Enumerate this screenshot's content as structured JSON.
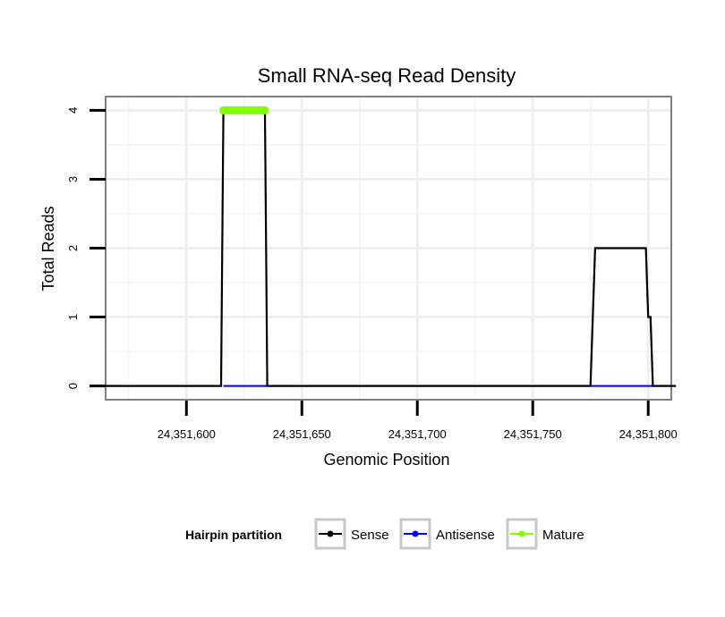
{
  "chart_data": {
    "type": "line",
    "title": "Small RNA-seq Read Density",
    "xlabel": "Genomic Position",
    "ylabel": "Total Reads",
    "xlim": [
      24351565,
      24351810
    ],
    "ylim": [
      -0.2,
      4.2
    ],
    "x_ticks": [
      24351600,
      24351650,
      24351700,
      24351750,
      24351800
    ],
    "x_tick_labels": [
      "24,351,600",
      "24,351,650",
      "24,351,700",
      "24,351,750",
      "24,351,800"
    ],
    "y_ticks": [
      0,
      1,
      2,
      3,
      4
    ],
    "y_tick_labels": [
      "0",
      "1",
      "2",
      "3",
      "4"
    ],
    "x_minor_ticks": [
      24351575,
      24351625,
      24351675,
      24351725,
      24351775
    ],
    "y_minor_ticks": [
      0.5,
      1.5,
      2.5,
      3.5
    ],
    "grid": true,
    "legend_position": "bottom",
    "legend": {
      "title": "Hairpin partition",
      "entries": [
        {
          "label": "Sense",
          "color": "#000000"
        },
        {
          "label": "Antisense",
          "color": "#0000ff"
        },
        {
          "label": "Mature",
          "color": "#7fff00"
        }
      ]
    },
    "series": [
      {
        "name": "Sense",
        "color": "#000000",
        "x": [
          24351565,
          24351615,
          24351616,
          24351634,
          24351635,
          24351775,
          24351777,
          24351799,
          24351800,
          24351801,
          24351802,
          24351812
        ],
        "y": [
          0,
          0,
          4,
          4,
          0,
          0,
          2,
          2,
          1,
          1,
          0,
          0
        ]
      },
      {
        "name": "Antisense",
        "color": "#0000ff",
        "x": [
          24351616,
          24351635,
          24351775,
          24351802
        ],
        "y": [
          0,
          0,
          0,
          0
        ],
        "segments": [
          [
            0,
            1
          ],
          [
            2,
            3
          ]
        ]
      },
      {
        "name": "Mature",
        "color": "#7fff00",
        "x": [
          24351616,
          24351634
        ],
        "y": [
          4,
          4
        ]
      }
    ]
  }
}
